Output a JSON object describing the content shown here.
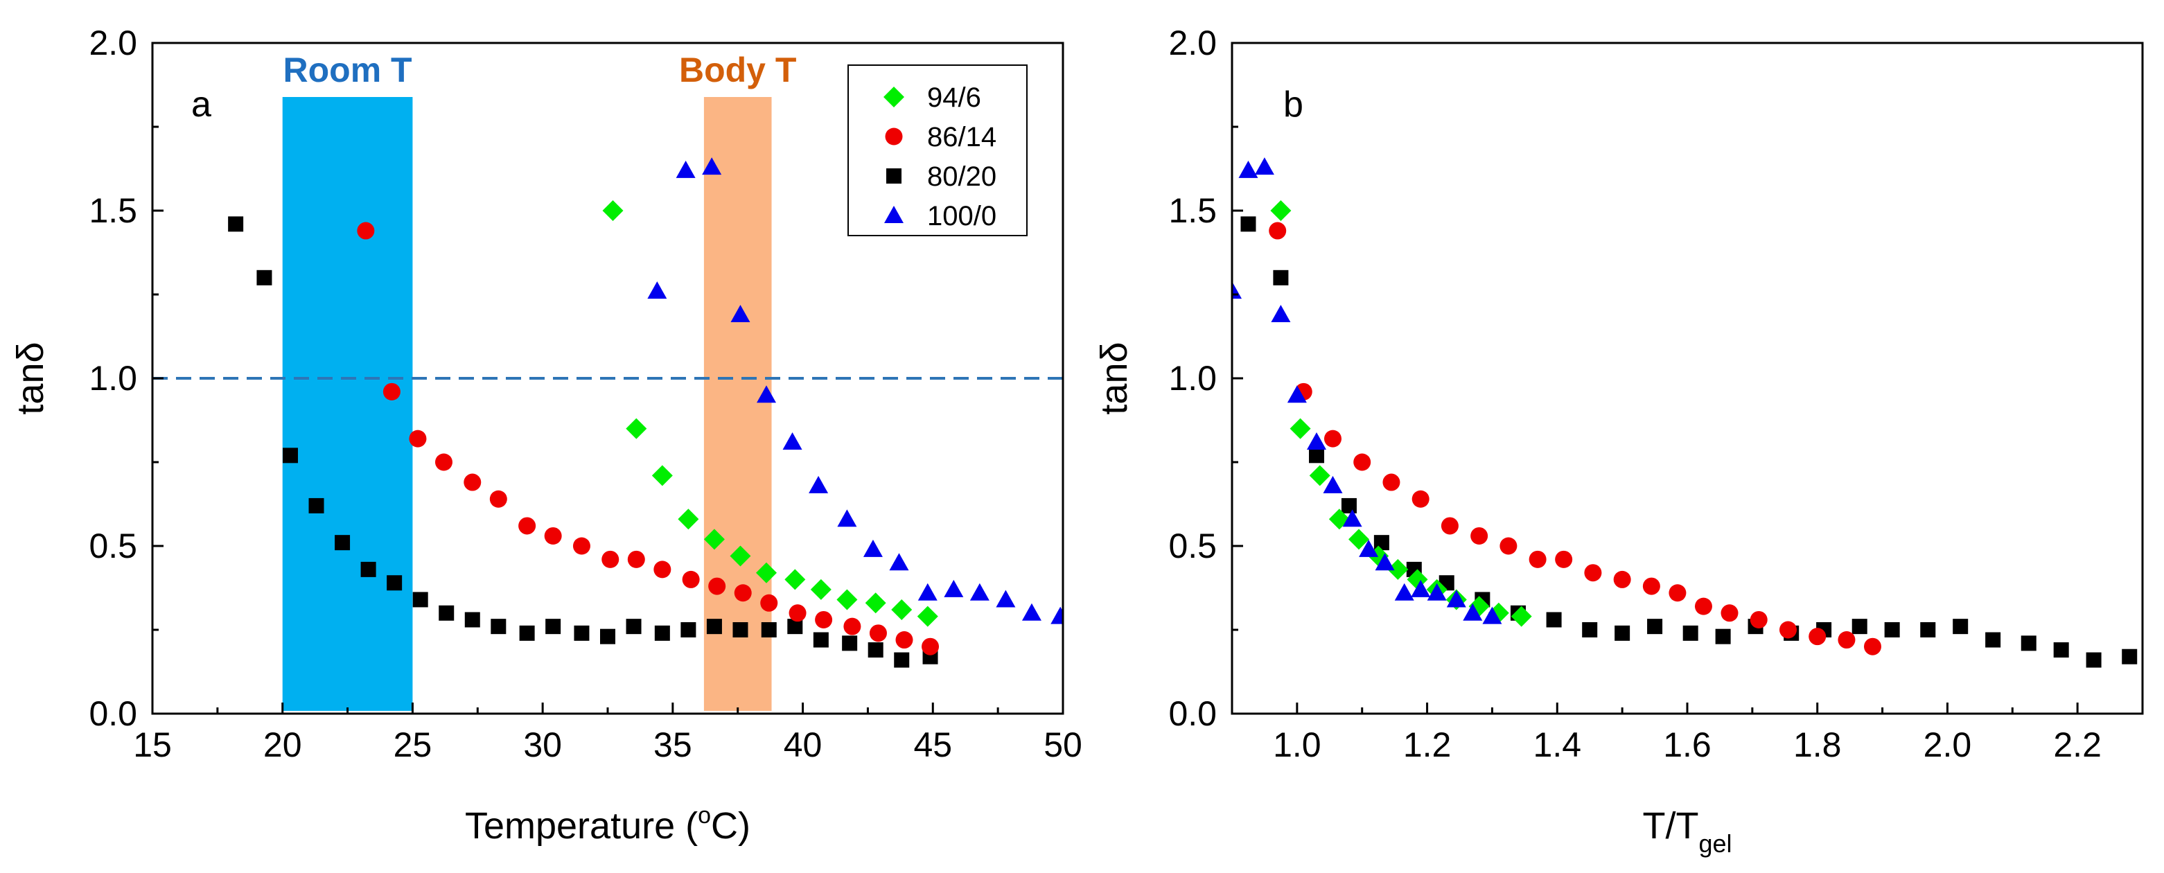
{
  "colors": {
    "s94_6": "#00ee00",
    "s86_14": "#ee0000",
    "s80_20": "#000000",
    "s100_0": "#0000ee",
    "room_band": "#00b0f0",
    "room_text": "#1f6fc0",
    "body_band": "#fbb584",
    "body_text": "#d35f0a",
    "ref_line": "#2e75b6"
  },
  "chart_data": [
    {
      "type": "scatter",
      "panel_label": "a",
      "xlabel": "Temperature (",
      "xlabel_sup": "o",
      "xlabel_end": "C)",
      "ylabel": "tanδ",
      "xlim": [
        15,
        50
      ],
      "ylim": [
        0,
        2
      ],
      "xticks": [
        "15",
        "20",
        "25",
        "30",
        "35",
        "40",
        "45",
        "50"
      ],
      "yticks": [
        "0.0",
        "0.5",
        "1.0",
        "1.5",
        "2.0"
      ],
      "reference_line": {
        "y": 1.0,
        "style": "dashed"
      },
      "bands": [
        {
          "name": "Room T",
          "x": [
            20,
            25
          ]
        },
        {
          "name": "Body T",
          "x": [
            36.2,
            38.8
          ]
        }
      ],
      "legend": [
        "94/6",
        "86/14",
        "80/20",
        "100/0"
      ],
      "legend_position": "top-right",
      "series": [
        {
          "name": "94/6",
          "marker": "diamond",
          "points": [
            [
              32.7,
              1.5
            ],
            [
              33.6,
              0.85
            ],
            [
              34.6,
              0.71
            ],
            [
              35.6,
              0.58
            ],
            [
              36.6,
              0.52
            ],
            [
              37.6,
              0.47
            ],
            [
              38.6,
              0.42
            ],
            [
              39.7,
              0.4
            ],
            [
              40.7,
              0.37
            ],
            [
              41.7,
              0.34
            ],
            [
              42.8,
              0.33
            ],
            [
              43.8,
              0.31
            ],
            [
              44.8,
              0.29
            ]
          ]
        },
        {
          "name": "86/14",
          "marker": "circle",
          "points": [
            [
              23.2,
              1.44
            ],
            [
              24.2,
              0.96
            ],
            [
              25.2,
              0.82
            ],
            [
              26.2,
              0.75
            ],
            [
              27.3,
              0.69
            ],
            [
              28.3,
              0.64
            ],
            [
              29.4,
              0.56
            ],
            [
              30.4,
              0.53
            ],
            [
              31.5,
              0.5
            ],
            [
              32.6,
              0.46
            ],
            [
              33.6,
              0.46
            ],
            [
              34.6,
              0.43
            ],
            [
              35.7,
              0.4
            ],
            [
              36.7,
              0.38
            ],
            [
              37.7,
              0.36
            ],
            [
              38.7,
              0.33
            ],
            [
              39.8,
              0.3
            ],
            [
              40.8,
              0.28
            ],
            [
              41.9,
              0.26
            ],
            [
              42.9,
              0.24
            ],
            [
              43.9,
              0.22
            ],
            [
              44.9,
              0.2
            ]
          ]
        },
        {
          "name": "80/20",
          "marker": "square",
          "points": [
            [
              18.2,
              1.46
            ],
            [
              19.3,
              1.3
            ],
            [
              20.3,
              0.77
            ],
            [
              21.3,
              0.62
            ],
            [
              22.3,
              0.51
            ],
            [
              23.3,
              0.43
            ],
            [
              24.3,
              0.39
            ],
            [
              25.3,
              0.34
            ],
            [
              26.3,
              0.3
            ],
            [
              27.3,
              0.28
            ],
            [
              28.3,
              0.26
            ],
            [
              29.4,
              0.24
            ],
            [
              30.4,
              0.26
            ],
            [
              31.5,
              0.24
            ],
            [
              32.5,
              0.23
            ],
            [
              33.5,
              0.26
            ],
            [
              34.6,
              0.24
            ],
            [
              35.6,
              0.25
            ],
            [
              36.6,
              0.26
            ],
            [
              37.6,
              0.25
            ],
            [
              38.7,
              0.25
            ],
            [
              39.7,
              0.26
            ],
            [
              40.7,
              0.22
            ],
            [
              41.8,
              0.21
            ],
            [
              42.8,
              0.19
            ],
            [
              43.8,
              0.16
            ],
            [
              44.9,
              0.17
            ]
          ]
        },
        {
          "name": "100/0",
          "marker": "triangle",
          "points": [
            [
              34.4,
              1.26
            ],
            [
              35.5,
              1.62
            ],
            [
              36.5,
              1.63
            ],
            [
              37.6,
              1.19
            ],
            [
              38.6,
              0.95
            ],
            [
              39.6,
              0.81
            ],
            [
              40.6,
              0.68
            ],
            [
              41.7,
              0.58
            ],
            [
              42.7,
              0.49
            ],
            [
              43.7,
              0.45
            ],
            [
              44.8,
              0.36
            ],
            [
              45.8,
              0.37
            ],
            [
              46.8,
              0.36
            ],
            [
              47.8,
              0.34
            ],
            [
              48.8,
              0.3
            ],
            [
              49.9,
              0.29
            ]
          ]
        }
      ]
    },
    {
      "type": "scatter",
      "panel_label": "b",
      "xlabel": "T/T",
      "xlabel_sub": "gel",
      "ylabel": "tanδ",
      "xlim": [
        0.9,
        2.3
      ],
      "ylim": [
        0,
        2
      ],
      "xticks": [
        "1.0",
        "1.2",
        "1.4",
        "1.6",
        "1.8",
        "2.0",
        "2.2"
      ],
      "yticks": [
        "0.0",
        "0.5",
        "1.0",
        "1.5",
        "2.0"
      ],
      "series": [
        {
          "name": "94/6",
          "marker": "diamond",
          "points": [
            [
              0.975,
              1.5
            ],
            [
              1.005,
              0.85
            ],
            [
              1.035,
              0.71
            ],
            [
              1.065,
              0.58
            ],
            [
              1.095,
              0.52
            ],
            [
              1.125,
              0.47
            ],
            [
              1.155,
              0.43
            ],
            [
              1.185,
              0.4
            ],
            [
              1.215,
              0.37
            ],
            [
              1.245,
              0.34
            ],
            [
              1.28,
              0.32
            ],
            [
              1.31,
              0.3
            ],
            [
              1.345,
              0.29
            ]
          ]
        },
        {
          "name": "86/14",
          "marker": "circle",
          "points": [
            [
              0.97,
              1.44
            ],
            [
              1.01,
              0.96
            ],
            [
              1.055,
              0.82
            ],
            [
              1.1,
              0.75
            ],
            [
              1.145,
              0.69
            ],
            [
              1.19,
              0.64
            ],
            [
              1.235,
              0.56
            ],
            [
              1.28,
              0.53
            ],
            [
              1.325,
              0.5
            ],
            [
              1.37,
              0.46
            ],
            [
              1.41,
              0.46
            ],
            [
              1.455,
              0.42
            ],
            [
              1.5,
              0.4
            ],
            [
              1.545,
              0.38
            ],
            [
              1.585,
              0.36
            ],
            [
              1.625,
              0.32
            ],
            [
              1.665,
              0.3
            ],
            [
              1.71,
              0.28
            ],
            [
              1.755,
              0.25
            ],
            [
              1.8,
              0.23
            ],
            [
              1.845,
              0.22
            ],
            [
              1.885,
              0.2
            ]
          ]
        },
        {
          "name": "80/20",
          "marker": "square",
          "points": [
            [
              0.925,
              1.46
            ],
            [
              0.975,
              1.3
            ],
            [
              1.03,
              0.77
            ],
            [
              1.08,
              0.62
            ],
            [
              1.13,
              0.51
            ],
            [
              1.18,
              0.43
            ],
            [
              1.23,
              0.39
            ],
            [
              1.285,
              0.34
            ],
            [
              1.34,
              0.3
            ],
            [
              1.395,
              0.28
            ],
            [
              1.45,
              0.25
            ],
            [
              1.5,
              0.24
            ],
            [
              1.55,
              0.26
            ],
            [
              1.605,
              0.24
            ],
            [
              1.655,
              0.23
            ],
            [
              1.705,
              0.26
            ],
            [
              1.76,
              0.24
            ],
            [
              1.81,
              0.25
            ],
            [
              1.865,
              0.26
            ],
            [
              1.915,
              0.25
            ],
            [
              1.97,
              0.25
            ],
            [
              2.02,
              0.26
            ],
            [
              2.07,
              0.22
            ],
            [
              2.125,
              0.21
            ],
            [
              2.175,
              0.19
            ],
            [
              2.225,
              0.16
            ],
            [
              2.28,
              0.17
            ]
          ]
        },
        {
          "name": "100/0",
          "marker": "triangle",
          "points": [
            [
              0.9,
              1.26
            ],
            [
              0.925,
              1.62
            ],
            [
              0.95,
              1.63
            ],
            [
              0.975,
              1.19
            ],
            [
              1.0,
              0.95
            ],
            [
              1.03,
              0.81
            ],
            [
              1.055,
              0.68
            ],
            [
              1.085,
              0.58
            ],
            [
              1.11,
              0.49
            ],
            [
              1.135,
              0.45
            ],
            [
              1.165,
              0.36
            ],
            [
              1.19,
              0.37
            ],
            [
              1.215,
              0.36
            ],
            [
              1.245,
              0.34
            ],
            [
              1.27,
              0.3
            ],
            [
              1.3,
              0.29
            ]
          ]
        }
      ]
    }
  ]
}
